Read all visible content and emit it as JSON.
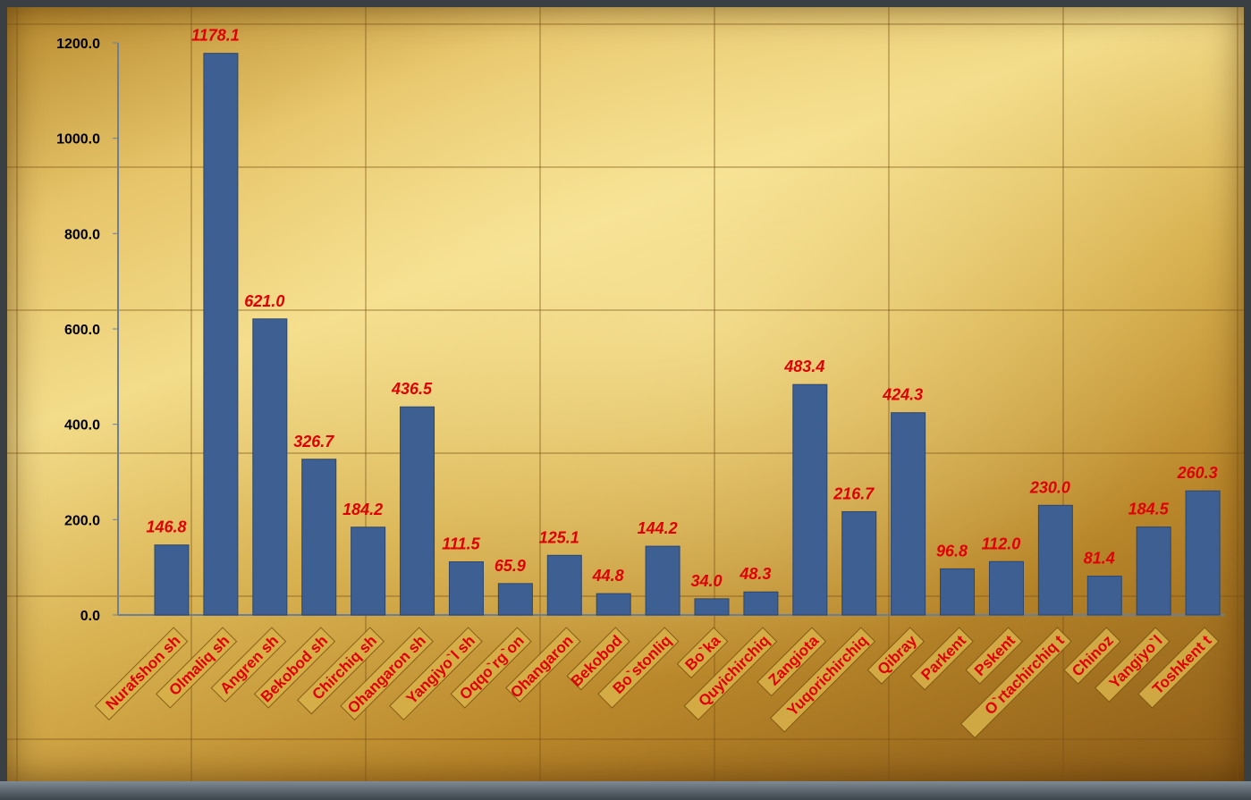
{
  "chart_data": {
    "type": "bar",
    "categories": [
      "Nurafshon sh",
      "Olmaliq sh",
      "Angren sh",
      "Bekobod sh",
      "Chirchiq sh",
      "Ohangaron sh",
      "Yangiyo`l sh",
      "Oqqo`rg`on",
      "Ohangaron",
      "Bekobod",
      "Bo`stonliq",
      "Bo`ka",
      "Quyichirchiq",
      "Zangiota",
      "Yuqorichirchiq",
      "Qibray",
      "Parkent",
      "Pskent",
      "O`rtachirchiq t",
      "Chinoz",
      "Yangiyo`l",
      "Toshkent t"
    ],
    "values": [
      146.8,
      1178.1,
      621.0,
      326.7,
      184.2,
      436.5,
      111.5,
      65.9,
      125.1,
      44.8,
      144.2,
      34.0,
      48.3,
      483.4,
      216.7,
      424.3,
      96.8,
      112.0,
      230.0,
      81.4,
      184.5,
      260.3
    ],
    "data_labels": [
      "146.8",
      "1178.1",
      "621.0",
      "326.7",
      "184.2",
      "436.5",
      "111.5",
      "65.9",
      "125.1",
      "44.8",
      "144.2",
      "34.0",
      "48.3",
      "483.4",
      "216.7",
      "424.3",
      "96.8",
      "112.0",
      "230.0",
      "81.4",
      "184.5",
      "260.3"
    ],
    "y_ticks": [
      "0.0",
      "200.0",
      "400.0",
      "600.0",
      "800.0",
      "1000.0",
      "1200.0"
    ],
    "ylim": [
      0,
      1200
    ],
    "title": "",
    "xlabel": "",
    "ylabel": "",
    "grid": false,
    "legend": "none",
    "colors": {
      "bar": "#3d5f92",
      "bar_edge": "#2b4670",
      "data_label": "#e00000",
      "category_label": "#e00000",
      "axis_text": "#000000"
    }
  }
}
